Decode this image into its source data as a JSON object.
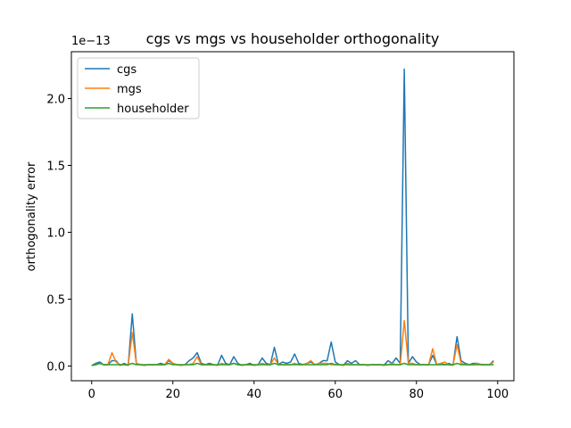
{
  "chart_data": {
    "type": "line",
    "title": "cgs vs mgs vs householder orthogonality",
    "xlabel": "",
    "ylabel": "orthogonality error",
    "y_scale_label": "1e−13",
    "y_scale_factor": 1e-13,
    "xlim": [
      -5,
      104
    ],
    "ylim": [
      -0.11,
      2.35
    ],
    "xticks": [
      0,
      20,
      40,
      60,
      80,
      100
    ],
    "yticks": [
      0.0,
      0.5,
      1.0,
      1.5,
      2.0
    ],
    "ytick_labels": [
      "0.0",
      "0.5",
      "1.0",
      "1.5",
      "2.0"
    ],
    "legend_position": "upper-left",
    "x_start": 0,
    "series": [
      {
        "name": "cgs",
        "color": "#1f77b4",
        "values": [
          0.004,
          0.02,
          0.03,
          0.008,
          0.01,
          0.04,
          0.04,
          0.005,
          0.02,
          0.005,
          0.39,
          0.02,
          0.01,
          0.005,
          0.01,
          0.01,
          0.01,
          0.02,
          0.01,
          0.04,
          0.02,
          0.01,
          0.005,
          0.01,
          0.04,
          0.06,
          0.1,
          0.02,
          0.01,
          0.02,
          0.01,
          0.005,
          0.08,
          0.02,
          0.01,
          0.07,
          0.02,
          0.005,
          0.01,
          0.02,
          0.005,
          0.01,
          0.06,
          0.02,
          0.01,
          0.14,
          0.01,
          0.03,
          0.02,
          0.03,
          0.09,
          0.02,
          0.01,
          0.02,
          0.03,
          0.01,
          0.02,
          0.04,
          0.04,
          0.18,
          0.03,
          0.01,
          0.005,
          0.04,
          0.02,
          0.04,
          0.01,
          0.01,
          0.005,
          0.01,
          0.01,
          0.01,
          0.005,
          0.04,
          0.02,
          0.06,
          0.02,
          2.22,
          0.02,
          0.07,
          0.03,
          0.01,
          0.01,
          0.01,
          0.08,
          0.01,
          0.02,
          0.01,
          0.02,
          0.005,
          0.22,
          0.04,
          0.02,
          0.01,
          0.02,
          0.02,
          0.01,
          0.01,
          0.01,
          0.04
        ]
      },
      {
        "name": "mgs",
        "color": "#ff7f0e",
        "values": [
          0.004,
          0.01,
          0.02,
          0.01,
          0.01,
          0.1,
          0.03,
          0.01,
          0.01,
          0.005,
          0.25,
          0.02,
          0.01,
          0.005,
          0.01,
          0.01,
          0.01,
          0.01,
          0.01,
          0.05,
          0.02,
          0.01,
          0.005,
          0.01,
          0.01,
          0.02,
          0.07,
          0.01,
          0.01,
          0.01,
          0.01,
          0.005,
          0.02,
          0.01,
          0.01,
          0.02,
          0.01,
          0.005,
          0.01,
          0.01,
          0.005,
          0.01,
          0.02,
          0.01,
          0.01,
          0.06,
          0.01,
          0.01,
          0.01,
          0.01,
          0.02,
          0.01,
          0.01,
          0.02,
          0.04,
          0.01,
          0.02,
          0.02,
          0.02,
          0.01,
          0.01,
          0.01,
          0.005,
          0.02,
          0.01,
          0.01,
          0.01,
          0.01,
          0.005,
          0.01,
          0.01,
          0.01,
          0.005,
          0.01,
          0.02,
          0.01,
          0.01,
          0.34,
          0.02,
          0.02,
          0.01,
          0.01,
          0.01,
          0.01,
          0.13,
          0.01,
          0.02,
          0.03,
          0.01,
          0.005,
          0.16,
          0.02,
          0.01,
          0.01,
          0.01,
          0.02,
          0.01,
          0.01,
          0.01,
          0.03
        ]
      },
      {
        "name": "householder",
        "color": "#2ca02c",
        "values": [
          0.004,
          0.01,
          0.02,
          0.01,
          0.01,
          0.01,
          0.01,
          0.01,
          0.01,
          0.01,
          0.02,
          0.01,
          0.01,
          0.01,
          0.01,
          0.01,
          0.01,
          0.01,
          0.01,
          0.02,
          0.01,
          0.01,
          0.01,
          0.01,
          0.01,
          0.01,
          0.02,
          0.01,
          0.01,
          0.01,
          0.01,
          0.01,
          0.01,
          0.01,
          0.01,
          0.02,
          0.01,
          0.01,
          0.01,
          0.01,
          0.01,
          0.01,
          0.01,
          0.01,
          0.01,
          0.02,
          0.01,
          0.01,
          0.01,
          0.01,
          0.01,
          0.01,
          0.01,
          0.01,
          0.01,
          0.01,
          0.01,
          0.01,
          0.01,
          0.02,
          0.01,
          0.01,
          0.01,
          0.01,
          0.01,
          0.01,
          0.01,
          0.01,
          0.01,
          0.01,
          0.01,
          0.01,
          0.01,
          0.01,
          0.01,
          0.01,
          0.01,
          0.02,
          0.01,
          0.01,
          0.01,
          0.01,
          0.01,
          0.01,
          0.01,
          0.01,
          0.01,
          0.01,
          0.01,
          0.01,
          0.02,
          0.01,
          0.01,
          0.01,
          0.01,
          0.01,
          0.01,
          0.01,
          0.01,
          0.01
        ]
      }
    ]
  }
}
